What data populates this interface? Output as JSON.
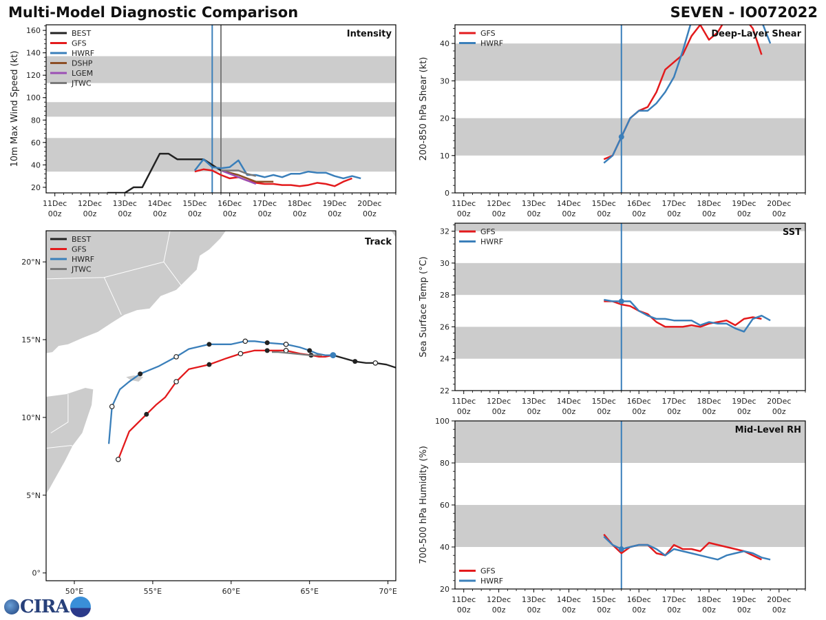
{
  "header": {
    "title": "Multi-Model Diagnostic Comparison",
    "storm_id": "SEVEN - IO072022"
  },
  "colors": {
    "BEST": "#222222",
    "GFS": "#e31a1c",
    "HWRF": "#3a7fba",
    "DSHP": "#8c4e24",
    "LGEM": "#9b4fb5",
    "JTWC": "#7a7a7a",
    "band": "#cccccc",
    "land": "#cccccc"
  },
  "time_axis": {
    "ticks": [
      {
        "day": 0,
        "label1": "11Dec",
        "label2": "00z"
      },
      {
        "day": 1,
        "label1": "12Dec",
        "label2": "00z"
      },
      {
        "day": 2,
        "label1": "13Dec",
        "label2": "00z"
      },
      {
        "day": 3,
        "label1": "14Dec",
        "label2": "00z"
      },
      {
        "day": 4,
        "label1": "15Dec",
        "label2": "00z"
      },
      {
        "day": 5,
        "label1": "16Dec",
        "label2": "00z"
      },
      {
        "day": 6,
        "label1": "17Dec",
        "label2": "00z"
      },
      {
        "day": 7,
        "label1": "18Dec",
        "label2": "00z"
      },
      {
        "day": 8,
        "label1": "19Dec",
        "label2": "00z"
      },
      {
        "day": 9,
        "label1": "20Dec",
        "label2": "00z"
      }
    ],
    "xlim": [
      -0.25,
      9.75
    ]
  },
  "chart_data": [
    {
      "id": "intensity",
      "type": "line",
      "title": "Intensity",
      "ylabel": "10m Max Wind Speed (kt)",
      "ylim": [
        15,
        165
      ],
      "yticks": [
        20,
        40,
        60,
        80,
        100,
        120,
        140,
        160
      ],
      "bands": [
        [
          34,
          64
        ],
        [
          83,
          96
        ],
        [
          113,
          137
        ]
      ],
      "vlines": [
        {
          "x": 4.5,
          "color": "HWRF"
        },
        {
          "x": 4.75,
          "color": "JTWC"
        }
      ],
      "legend": [
        "BEST",
        "GFS",
        "HWRF",
        "DSHP",
        "LGEM",
        "JTWC"
      ],
      "legend_position": "top-left",
      "series": [
        {
          "name": "BEST",
          "x": [
            1.5,
            2.0,
            2.25,
            2.5,
            3.0,
            3.25,
            3.5,
            4.0,
            4.25,
            4.5,
            4.75
          ],
          "y": [
            15,
            15,
            20,
            20,
            50,
            50,
            45,
            45,
            45,
            40,
            35
          ]
        },
        {
          "name": "GFS",
          "x": [
            4.0,
            4.25,
            4.5,
            4.75,
            5.0,
            5.25,
            5.5,
            5.75,
            6.0,
            6.25,
            6.5,
            6.75,
            7.0,
            7.25,
            7.5,
            7.75,
            8.0,
            8.25,
            8.5
          ],
          "y": [
            34,
            36,
            35,
            31,
            28,
            29,
            26,
            24,
            23,
            23,
            22,
            22,
            21,
            22,
            24,
            23,
            21,
            25,
            28
          ]
        },
        {
          "name": "HWRF",
          "x": [
            4.0,
            4.25,
            4.5,
            4.75,
            5.0,
            5.25,
            5.5,
            5.75,
            6.0,
            6.25,
            6.5,
            6.75,
            7.0,
            7.25,
            7.5,
            7.75,
            8.0,
            8.25,
            8.5,
            8.75
          ],
          "y": [
            35,
            45,
            38,
            37,
            38,
            44,
            31,
            31,
            29,
            31,
            29,
            32,
            32,
            34,
            33,
            33,
            30,
            28,
            30,
            28
          ]
        },
        {
          "name": "DSHP",
          "x": [
            4.75,
            5.0,
            5.25,
            5.5,
            5.75,
            6.0,
            6.25
          ],
          "y": [
            35,
            33,
            31,
            28,
            25,
            25,
            25
          ]
        },
        {
          "name": "LGEM",
          "x": [
            4.75,
            5.0,
            5.25,
            5.5,
            5.75
          ],
          "y": [
            35,
            32,
            29,
            26,
            23
          ]
        },
        {
          "name": "JTWC",
          "x": [
            4.75,
            5.0,
            5.25,
            5.5,
            5.75
          ],
          "y": [
            35,
            35,
            35,
            32,
            30
          ]
        }
      ]
    },
    {
      "id": "shear",
      "type": "line",
      "title": "Deep-Layer Shear",
      "ylabel": "200-850 hPa Shear (kt)",
      "ylim": [
        0,
        45
      ],
      "yticks": [
        0,
        10,
        20,
        30,
        40
      ],
      "bands": [
        [
          10,
          20
        ],
        [
          30,
          40
        ]
      ],
      "vlines": [
        {
          "x": 4.5,
          "color": "HWRF"
        }
      ],
      "marker": {
        "x": 4.5,
        "y": 15
      },
      "legend": [
        "GFS",
        "HWRF"
      ],
      "legend_position": "top-left",
      "series": [
        {
          "name": "GFS",
          "x": [
            4.0,
            4.25,
            4.5,
            4.75,
            5.0,
            5.25,
            5.5,
            5.75,
            6.0,
            6.25,
            6.5,
            6.75,
            7.0,
            7.25,
            7.5,
            7.75,
            8.0,
            8.25,
            8.5
          ],
          "y": [
            9,
            10,
            15,
            20,
            22,
            23,
            27,
            33,
            35,
            37,
            42,
            45,
            41,
            43,
            47,
            49,
            47,
            44,
            37
          ]
        },
        {
          "name": "HWRF",
          "x": [
            4.0,
            4.25,
            4.5,
            4.75,
            5.0,
            5.25,
            5.5,
            5.75,
            6.0,
            6.25,
            6.5,
            6.75,
            7.0,
            7.25,
            7.5,
            7.75,
            8.0,
            8.25,
            8.5,
            8.75
          ],
          "y": [
            8,
            10,
            15,
            20,
            22,
            22,
            24,
            27,
            31,
            38,
            46,
            50,
            52,
            53,
            52,
            51,
            50,
            48,
            46,
            40
          ]
        }
      ]
    },
    {
      "id": "track",
      "type": "line",
      "title": "Track",
      "xlim_lon": [
        48.2,
        70.5
      ],
      "ylim_lat": [
        -0.5,
        22.0
      ],
      "xticks": [
        {
          "v": 50,
          "label": "50°E"
        },
        {
          "v": 55,
          "label": "55°E"
        },
        {
          "v": 60,
          "label": "60°E"
        },
        {
          "v": 65,
          "label": "65°E"
        },
        {
          "v": 70,
          "label": "70°E"
        }
      ],
      "yticks": [
        {
          "v": 0,
          "label": "0°"
        },
        {
          "v": 5,
          "label": "5°N"
        },
        {
          "v": 10,
          "label": "10°N"
        },
        {
          "v": 15,
          "label": "15°N"
        },
        {
          "v": 20,
          "label": "20°N"
        }
      ],
      "legend": [
        "BEST",
        "GFS",
        "HWRF",
        "JTWC"
      ],
      "legend_position": "top-left",
      "series": [
        {
          "name": "BEST",
          "lon": [
            66.5,
            67.2,
            67.9,
            68.6,
            69.2,
            69.9,
            70.5
          ],
          "lat": [
            14.0,
            13.8,
            13.6,
            13.5,
            13.5,
            13.4,
            13.2
          ],
          "filled": [
            2
          ],
          "open": [
            4
          ]
        },
        {
          "name": "GFS",
          "lon": [
            66.5,
            66.0,
            65.6,
            65.1,
            64.4,
            63.5,
            62.3,
            61.5,
            60.6,
            59.7,
            58.6,
            57.3,
            56.5,
            55.8,
            55.2,
            54.6,
            53.8,
            53.5,
            52.8
          ],
          "lat": [
            14.0,
            13.9,
            13.9,
            14.0,
            14.1,
            14.3,
            14.3,
            14.3,
            14.1,
            13.8,
            13.4,
            13.1,
            12.3,
            11.3,
            10.8,
            10.2,
            9.4,
            9.1,
            7.3
          ],
          "filled": [
            3,
            6,
            10,
            15
          ],
          "open": [
            5,
            8,
            12,
            18
          ]
        },
        {
          "name": "HWRF",
          "lon": [
            66.5,
            66.0,
            65.5,
            65.0,
            64.4,
            63.5,
            62.3,
            61.5,
            60.9,
            60.0,
            58.6,
            57.3,
            56.5,
            55.4,
            54.2,
            53.5,
            52.9,
            52.4,
            52.2
          ],
          "lat": [
            14.0,
            14.0,
            14.1,
            14.3,
            14.5,
            14.7,
            14.8,
            14.9,
            14.9,
            14.7,
            14.7,
            14.4,
            13.9,
            13.3,
            12.8,
            12.3,
            11.8,
            10.7,
            8.3
          ],
          "filled": [
            3,
            6,
            10,
            14
          ],
          "open": [
            5,
            8,
            12,
            17
          ]
        },
        {
          "name": "JTWC",
          "lon": [
            65.8,
            65.0,
            64.0,
            63.0,
            62.6
          ],
          "lat": [
            14.0,
            14.0,
            14.1,
            14.2,
            14.2
          ],
          "filled": [],
          "open": []
        }
      ],
      "current": {
        "lon": 66.5,
        "lat": 14.0
      }
    },
    {
      "id": "sst",
      "type": "line",
      "title": "SST",
      "ylabel": "Sea Surface Temp (°C)",
      "ylim": [
        22,
        32.5
      ],
      "yticks": [
        22,
        24,
        26,
        28,
        30,
        32
      ],
      "bands": [
        [
          24,
          26
        ],
        [
          28,
          30
        ],
        [
          32,
          33
        ]
      ],
      "vlines": [
        {
          "x": 4.5,
          "color": "HWRF"
        }
      ],
      "marker": {
        "x": 4.5,
        "y": 27.6
      },
      "legend": [
        "GFS",
        "HWRF"
      ],
      "legend_position": "top-left",
      "series": [
        {
          "name": "GFS",
          "x": [
            4.0,
            4.25,
            4.5,
            4.75,
            5.0,
            5.25,
            5.5,
            5.75,
            6.0,
            6.25,
            6.5,
            6.75,
            7.0,
            7.25,
            7.5,
            7.75,
            8.0,
            8.25,
            8.5
          ],
          "y": [
            27.6,
            27.6,
            27.4,
            27.3,
            27.0,
            26.8,
            26.3,
            26.0,
            26.0,
            26.0,
            26.1,
            26.0,
            26.2,
            26.3,
            26.4,
            26.1,
            26.5,
            26.6,
            26.5
          ]
        },
        {
          "name": "HWRF",
          "x": [
            4.0,
            4.25,
            4.5,
            4.75,
            5.0,
            5.25,
            5.5,
            5.75,
            6.0,
            6.25,
            6.5,
            6.75,
            7.0,
            7.25,
            7.5,
            7.75,
            8.0,
            8.25,
            8.5,
            8.75
          ],
          "y": [
            27.7,
            27.6,
            27.6,
            27.6,
            27.0,
            26.7,
            26.5,
            26.5,
            26.4,
            26.4,
            26.4,
            26.1,
            26.3,
            26.2,
            26.2,
            25.9,
            25.7,
            26.5,
            26.7,
            26.4
          ]
        }
      ]
    },
    {
      "id": "rh",
      "type": "line",
      "title": "Mid-Level RH",
      "ylabel": "700-500 hPa Humidity (%)",
      "ylim": [
        20,
        100
      ],
      "yticks": [
        20,
        40,
        60,
        80,
        100
      ],
      "bands": [
        [
          40,
          60
        ],
        [
          80,
          100
        ]
      ],
      "vlines": [
        {
          "x": 4.5,
          "color": "HWRF"
        }
      ],
      "marker": {
        "x": 4.5,
        "y": 39
      },
      "legend": [
        "GFS",
        "HWRF"
      ],
      "legend_position": "bottom-left",
      "series": [
        {
          "name": "GFS",
          "x": [
            4.0,
            4.25,
            4.5,
            4.75,
            5.0,
            5.25,
            5.5,
            5.75,
            6.0,
            6.25,
            6.5,
            6.75,
            7.0,
            7.25,
            7.5,
            7.75,
            8.0,
            8.25,
            8.5
          ],
          "y": [
            46,
            41,
            37,
            40,
            41,
            41,
            37,
            36,
            41,
            39,
            39,
            38,
            42,
            41,
            40,
            39,
            38,
            36,
            34
          ]
        },
        {
          "name": "HWRF",
          "x": [
            4.0,
            4.25,
            4.5,
            4.75,
            5.0,
            5.25,
            5.5,
            5.75,
            6.0,
            6.25,
            6.5,
            6.75,
            7.0,
            7.25,
            7.5,
            7.75,
            8.0,
            8.25,
            8.5,
            8.75
          ],
          "y": [
            45,
            41,
            39,
            40,
            41,
            41,
            39,
            36,
            39,
            38,
            37,
            36,
            35,
            34,
            36,
            37,
            38,
            37,
            35,
            34
          ]
        }
      ]
    }
  ],
  "logo": {
    "text": "CIRA"
  }
}
